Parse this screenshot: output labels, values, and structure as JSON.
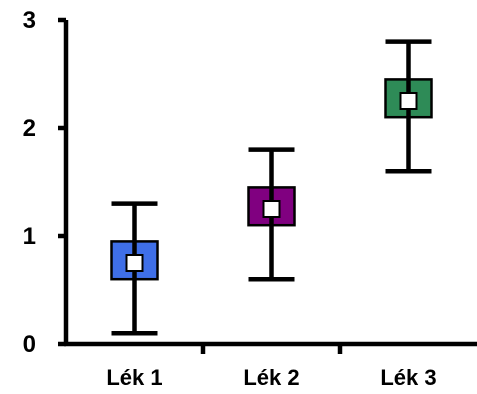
{
  "chart_data": {
    "type": "box",
    "title": "",
    "xlabel": "",
    "ylabel": "",
    "ylim": [
      0,
      3
    ],
    "y_ticks": [
      "0",
      "1",
      "2",
      "3"
    ],
    "y_tick_values": [
      0,
      1,
      2,
      3
    ],
    "grid": false,
    "legend": "none",
    "categories": [
      "Lék 1",
      "Lék 2",
      "Lék 3"
    ],
    "series": [
      {
        "values": [
          {
            "category": "Lék 1",
            "whisker_low": 0.1,
            "box_low": 0.6,
            "median": 0.75,
            "box_high": 0.95,
            "whisker_high": 1.3,
            "color": "#3F6FE8"
          },
          {
            "category": "Lék 2",
            "whisker_low": 0.6,
            "box_low": 1.1,
            "median": 1.25,
            "box_high": 1.45,
            "whisker_high": 1.8,
            "color": "#800080"
          },
          {
            "category": "Lék 3",
            "whisker_low": 1.6,
            "box_low": 2.1,
            "median": 2.25,
            "box_high": 2.45,
            "whisker_high": 2.8,
            "color": "#2E8B57"
          }
        ]
      }
    ],
    "colors": {
      "axis": "#000000",
      "whisker": "#000000",
      "median_marker": "#ffffff"
    }
  }
}
